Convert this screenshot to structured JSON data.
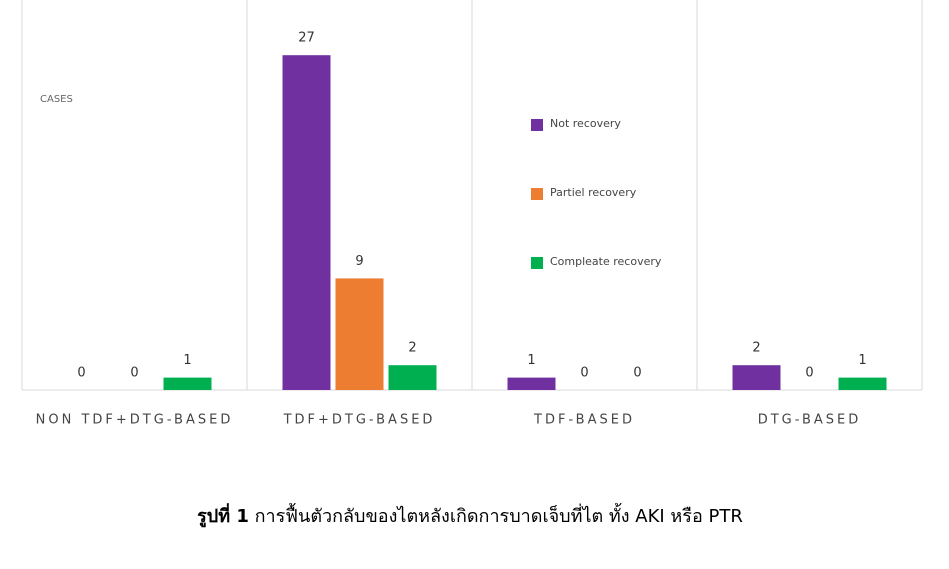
{
  "chart_data": {
    "type": "bar",
    "y_label": "CASES",
    "categories": [
      "NON TDF+DTG-BASED",
      "TDF+DTG-BASED",
      "TDF-BASED",
      "DTG-BASED"
    ],
    "series": [
      {
        "name": "Not recovery",
        "color": "#7030a0",
        "values": [
          0,
          27,
          1,
          2
        ]
      },
      {
        "name": "Partiel recovery",
        "color": "#ed7d31",
        "values": [
          0,
          9,
          0,
          0
        ]
      },
      {
        "name": "Compleate recovery",
        "color": "#00b050",
        "values": [
          1,
          2,
          0,
          1
        ]
      }
    ],
    "ylim": [
      0,
      30
    ],
    "caption": {
      "label": "รูปที่ 1",
      "text": "การฟื้นตัวกลับของไตหลังเกิดการบาดเจ็บที่ไต ทั้ง AKI หรือ PTR"
    }
  }
}
